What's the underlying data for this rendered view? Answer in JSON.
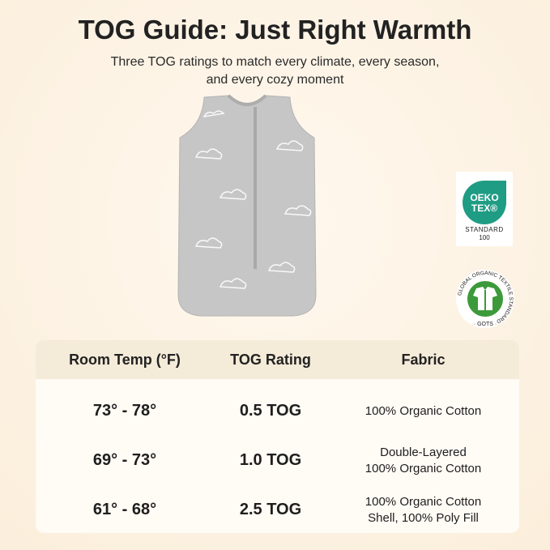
{
  "title": "TOG Guide: Just Right Warmth",
  "subtitle_line1": "Three TOG ratings to match every climate, every season,",
  "subtitle_line2": "and every cozy moment",
  "badges": {
    "oeko_line1": "OEKO",
    "oeko_line2": "TEX®",
    "oeko_standard": "STANDARD",
    "oeko_number": "100",
    "gots_text": "GLOBAL ORGANIC TEXTILE STANDARD",
    "gots_abbr": "· GOTS ·",
    "oeko_color": "#1f9c84",
    "gots_color": "#3c9a3a"
  },
  "table": {
    "headers": [
      "Room Temp (°F)",
      "TOG Rating",
      "Fabric"
    ],
    "rows": [
      {
        "temp": "73° - 78°",
        "tog": "0.5 TOG",
        "fabric1": "100% Organic Cotton",
        "fabric2": ""
      },
      {
        "temp": "69° - 73°",
        "tog": "1.0 TOG",
        "fabric1": "Double-Layered",
        "fabric2": "100% Organic Cotton"
      },
      {
        "temp": "61° - 68°",
        "tog": "2.5 TOG",
        "fabric1": "100% Organic Cotton",
        "fabric2": "Shell, 100% Poly Fill"
      }
    ]
  }
}
